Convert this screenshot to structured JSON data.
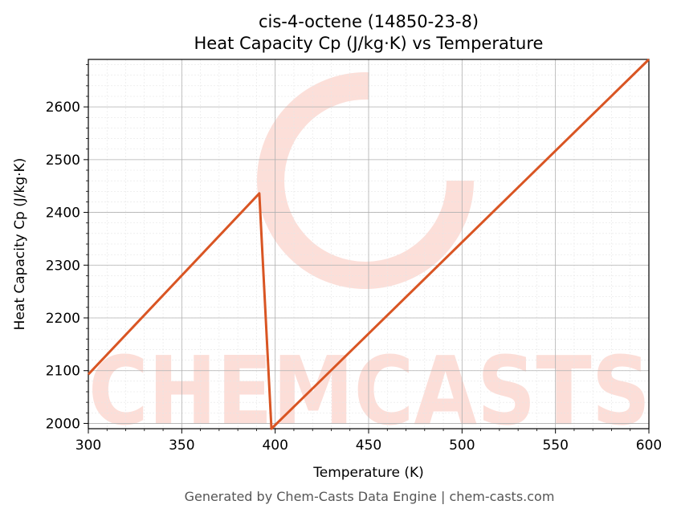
{
  "chart_data": {
    "type": "line",
    "title_line1": "cis-4-octene (14850-23-8)",
    "title_line2": "Heat Capacity Cp (J/kg·K) vs Temperature",
    "xlabel": "Temperature (K)",
    "ylabel": "Heat Capacity Cp (J/kg·K)",
    "xlim": [
      300,
      600
    ],
    "ylim": [
      1990,
      2690
    ],
    "x_ticks": [
      300,
      350,
      400,
      450,
      500,
      550,
      600
    ],
    "y_ticks": [
      2000,
      2100,
      2200,
      2300,
      2400,
      2500,
      2600
    ],
    "grid": true,
    "series": [
      {
        "color": "#d95523",
        "points": [
          {
            "x": 300,
            "y": 2093
          },
          {
            "x": 391.5,
            "y": 2436
          },
          {
            "x": 398,
            "y": 1990
          },
          {
            "x": 600,
            "y": 2690
          }
        ]
      }
    ]
  },
  "watermark": {
    "text": "CHEMCASTS",
    "color": "#fcd9d2"
  },
  "footer": "Generated by Chem-Casts Data Engine | chem-casts.com"
}
